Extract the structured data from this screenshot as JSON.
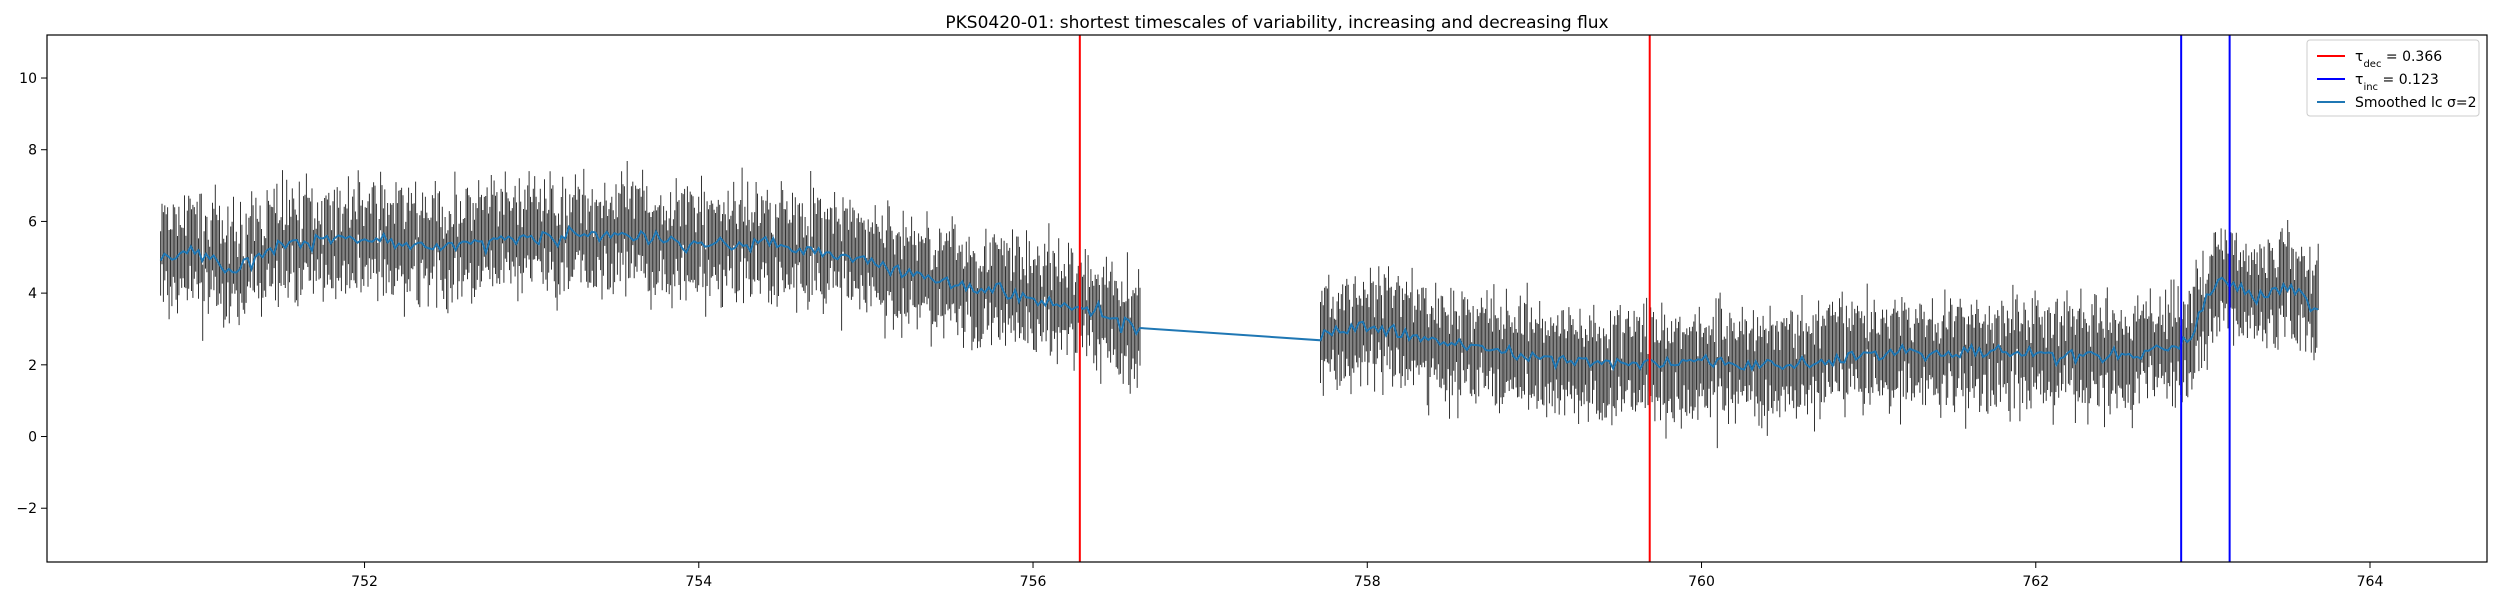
{
  "chart_data": {
    "type": "line",
    "title": "PKS0420-01: shortest timescales of variability, increasing and decreasing flux",
    "xlim": [
      750.1,
      764.7
    ],
    "ylim": [
      -3.5,
      11.2
    ],
    "xticks": [
      752,
      754,
      756,
      758,
      760,
      762,
      764
    ],
    "yticks": [
      -2,
      0,
      2,
      4,
      6,
      8,
      10
    ],
    "grid": false,
    "legend_placement": "top-right",
    "colors": {
      "errorbars": "#333333",
      "smoothed": "#1f77b4",
      "decreasing": "#ff0000",
      "increasing": "#0000ff"
    },
    "legend": [
      {
        "sym": "τ",
        "sub": "dec",
        "suffix": " = 0.366",
        "color": "#ff0000"
      },
      {
        "sym": "τ",
        "sub": "inc",
        "suffix": " = 0.123",
        "color": "#0000ff"
      },
      {
        "sym": "",
        "sub": "",
        "suffix": "Smoothed lc σ=2",
        "color": "#1f77b4"
      }
    ],
    "vlines": [
      {
        "name": "tau-dec-start",
        "x": 756.28,
        "color": "#ff0000"
      },
      {
        "name": "tau-dec-end",
        "x": 759.69,
        "color": "#ff0000"
      },
      {
        "name": "tau-inc-start",
        "x": 762.87,
        "color": "#0000ff"
      },
      {
        "name": "tau-inc-end",
        "x": 763.16,
        "color": "#0000ff"
      }
    ],
    "segments": [
      {
        "x_start": 750.78,
        "x_end": 756.64,
        "n": 700
      },
      {
        "x_start": 757.72,
        "x_end": 763.69,
        "n": 720
      }
    ],
    "smoothed_trend": {
      "x": [
        750.78,
        751.0,
        751.2,
        751.5,
        752.0,
        752.5,
        753.0,
        753.5,
        754.0,
        754.5,
        755.0,
        755.5,
        756.0,
        756.3,
        756.64,
        757.72,
        758.0,
        758.5,
        759.0,
        759.5,
        760.0,
        760.5,
        761.0,
        761.5,
        762.0,
        762.5,
        762.9,
        763.1,
        763.3,
        763.5,
        763.69
      ],
      "y": [
        5.0,
        5.2,
        4.6,
        5.4,
        5.5,
        5.3,
        5.6,
        5.6,
        5.4,
        5.4,
        4.9,
        4.3,
        3.9,
        3.6,
        3.0,
        2.85,
        3.0,
        2.6,
        2.2,
        2.0,
        2.1,
        2.0,
        2.3,
        2.4,
        2.3,
        2.2,
        2.6,
        4.5,
        3.8,
        4.2,
        3.6
      ]
    },
    "error_half_width": 1.0
  }
}
